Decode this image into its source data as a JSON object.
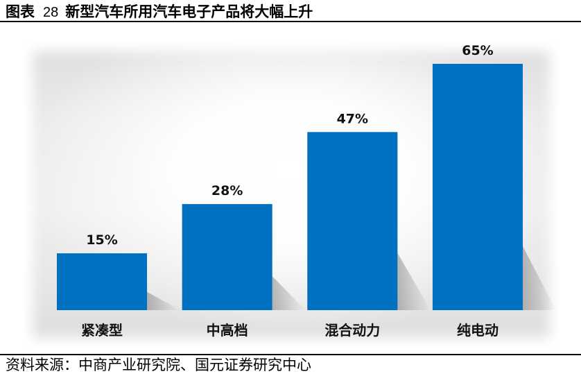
{
  "header": {
    "figure_label": "图表",
    "figure_number": "28"
  },
  "chart_data": {
    "type": "bar",
    "title": "新型汽车所用汽车电子产品将大幅上升",
    "categories": [
      "紧凑型",
      "中高档",
      "混合动力",
      "纯电动"
    ],
    "values": [
      15,
      28,
      47,
      65
    ],
    "data_labels": [
      "15%",
      "28%",
      "47%",
      "65%"
    ],
    "ylim": [
      0,
      70
    ],
    "grid": false,
    "show_axes": false,
    "show_legend": false,
    "bar_color": "#0070C0"
  },
  "source": {
    "label": "资料来源：",
    "text": "中商产业研究院、国元证券研究中心"
  }
}
